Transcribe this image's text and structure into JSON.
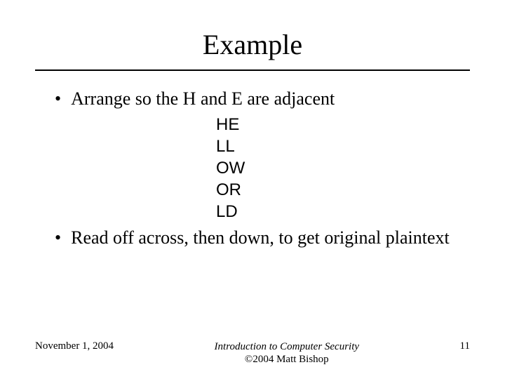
{
  "title": "Example",
  "bullets": [
    {
      "text": "Arrange so the H and E are adjacent"
    },
    {
      "text": "Read off across, then down, to get original plaintext"
    }
  ],
  "code_lines": [
    "HE",
    "LL",
    "OW",
    "OR",
    "LD"
  ],
  "footer": {
    "date": "November 1, 2004",
    "center_line1": "Introduction to Computer Security",
    "center_line2": "©2004 Matt Bishop",
    "page_number": "11"
  },
  "style": {
    "background_color": "#ffffff",
    "text_color": "#000000",
    "title_fontsize": 40,
    "bullet_fontsize": 26,
    "code_fontsize": 24,
    "footer_fontsize": 15,
    "title_font": "Times New Roman",
    "body_font": "Times New Roman",
    "code_font": "Arial"
  }
}
